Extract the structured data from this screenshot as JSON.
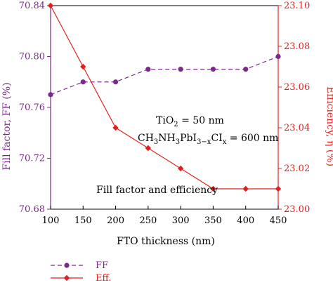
{
  "chart_data": {
    "type": "line",
    "x": [
      100,
      150,
      200,
      250,
      300,
      350,
      400,
      450
    ],
    "xlabel": "FTO thickness (nm)",
    "xlim": [
      100,
      450
    ],
    "x_ticks": [
      "100",
      "150",
      "200",
      "250",
      "300",
      "350",
      "400",
      "450"
    ],
    "left_axis": {
      "label": "Fill factor, FF (%)",
      "ylim": [
        70.68,
        70.84
      ],
      "ticks": [
        "70.68",
        "70.72",
        "70.76",
        "70.80",
        "70.84"
      ],
      "color": "#7b2a8c"
    },
    "right_axis": {
      "label": "Efficiency, η (%)",
      "ylim": [
        23.0,
        23.1
      ],
      "ticks": [
        "23.00",
        "23.02",
        "23.04",
        "23.06",
        "23.08",
        "23.10"
      ],
      "color": "#e0201e"
    },
    "series": [
      {
        "name": "FF",
        "axis": "left",
        "color": "#7b2a8c",
        "style": "dashed",
        "marker": "circle",
        "values": [
          70.77,
          70.78,
          70.78,
          70.79,
          70.79,
          70.79,
          70.79,
          70.8
        ]
      },
      {
        "name": "Eff.",
        "axis": "right",
        "color": "#e0201e",
        "style": "solid",
        "marker": "diamond",
        "values": [
          23.1,
          23.07,
          23.04,
          23.03,
          23.02,
          23.01,
          23.01,
          23.01
        ]
      }
    ],
    "annotations": {
      "line1": "TiO",
      "line1_sub": "2",
      "line1_rest": " = 50 nm",
      "line2_parts": [
        "CH",
        "3",
        "NH",
        "3",
        "PbI",
        "3−x",
        "CI",
        "x",
        " = 600 nm"
      ],
      "caption": "Fill factor and efficiency"
    },
    "legend": {
      "placement": "bottom-left"
    },
    "grid": false
  }
}
